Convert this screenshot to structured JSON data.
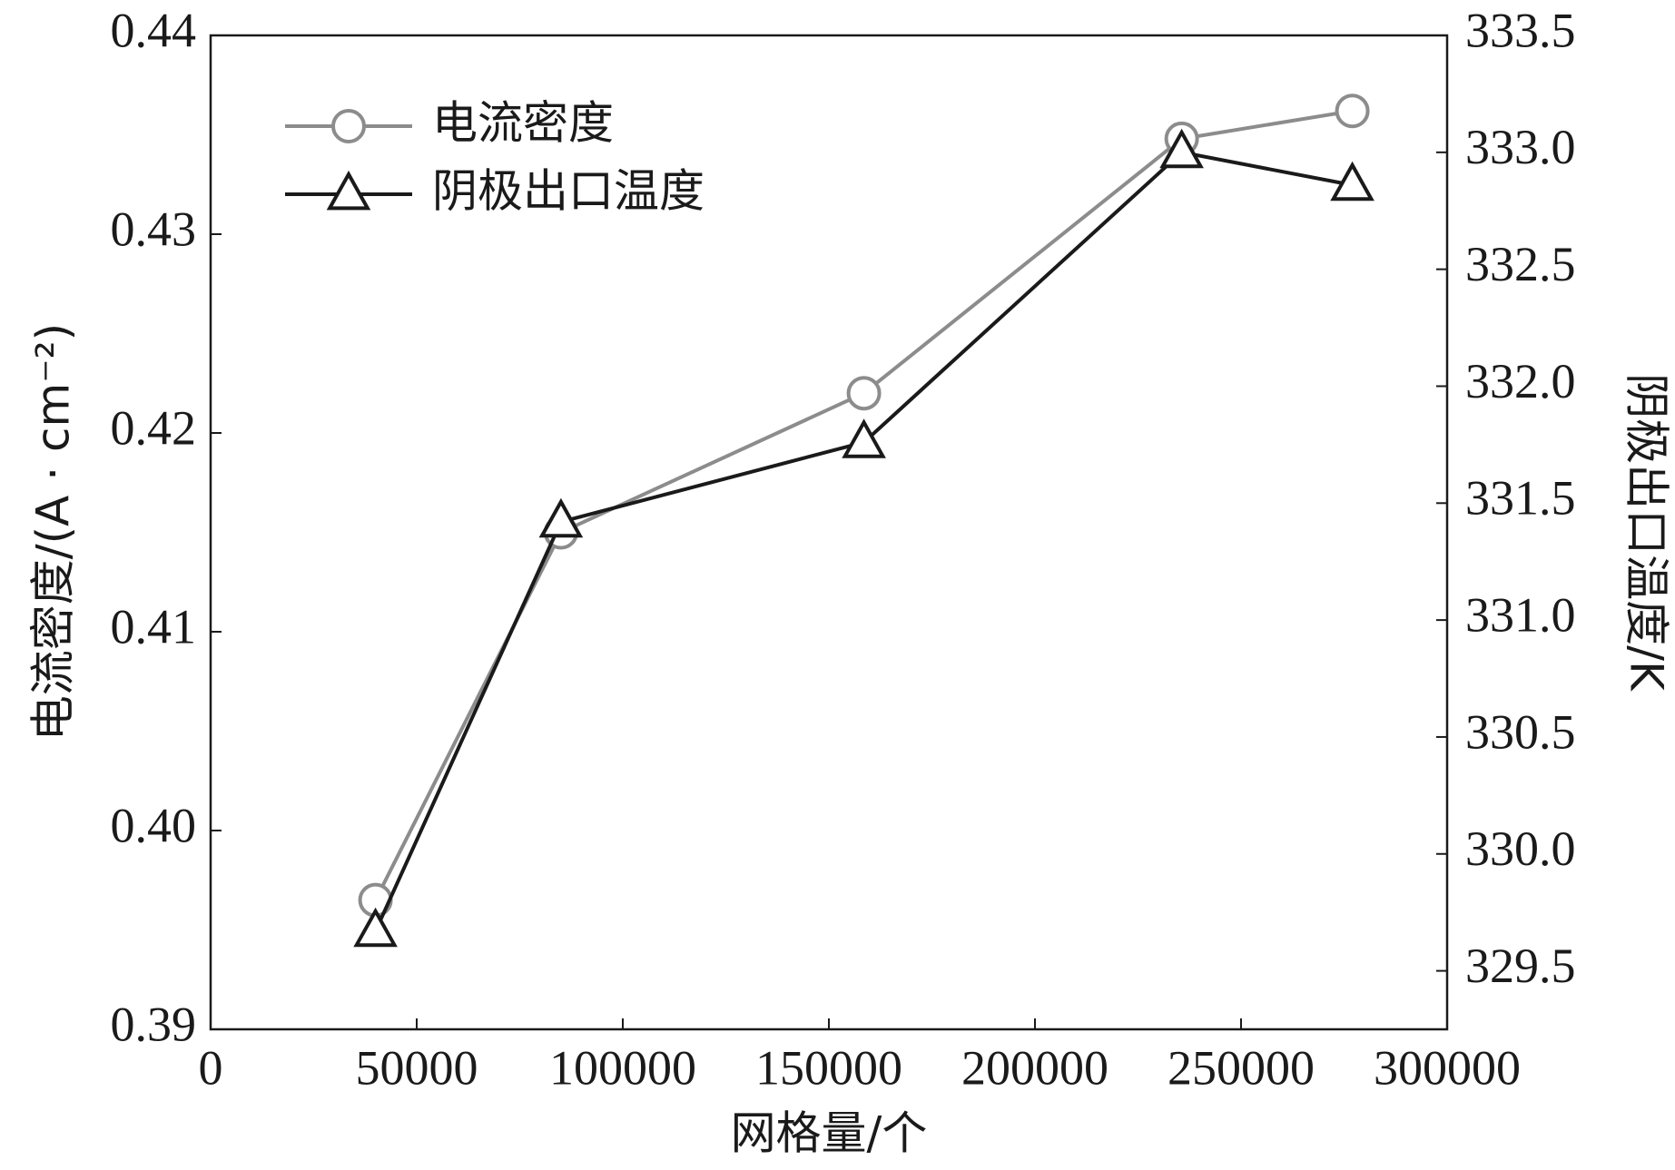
{
  "chart_data": {
    "type": "line",
    "xlabel": "网格量/个",
    "ylabel": "电流密度/(A · cm⁻²)",
    "y2label": "阴极出口温度/K",
    "x": [
      40000,
      85000,
      158500,
      235600,
      277000
    ],
    "series": [
      {
        "name": "电流密度",
        "color": "#8c8c8c",
        "marker": "circle",
        "values": [
          0.3965,
          0.415,
          0.422,
          0.4348,
          0.4362
        ]
      },
      {
        "name": "阴极出口温度",
        "color": "#1a1a1a",
        "marker": "triangle",
        "axis": "y2",
        "values": [
          329.67,
          331.42,
          331.76,
          333.0,
          332.86
        ]
      }
    ],
    "xlim": [
      0,
      300000
    ],
    "xticks": [
      0,
      50000,
      100000,
      150000,
      200000,
      250000,
      300000
    ],
    "ylim": [
      0.39,
      0.44
    ],
    "yticks": [
      0.39,
      {
        "value": 0.4,
        "label": "0.40"
      },
      0.41,
      0.42,
      0.43,
      0.44
    ],
    "y2lim": [
      329.25,
      333.5
    ],
    "y2ticks": [
      329.5,
      {
        "value": 330,
        "label": "330.0"
      },
      330.5,
      {
        "value": 331,
        "label": "331.0"
      },
      331.5,
      {
        "value": 332,
        "label": "332.0"
      },
      332.5,
      {
        "value": 333,
        "label": "333.0"
      },
      333.5
    ],
    "grid": false,
    "legend": "upper left"
  }
}
